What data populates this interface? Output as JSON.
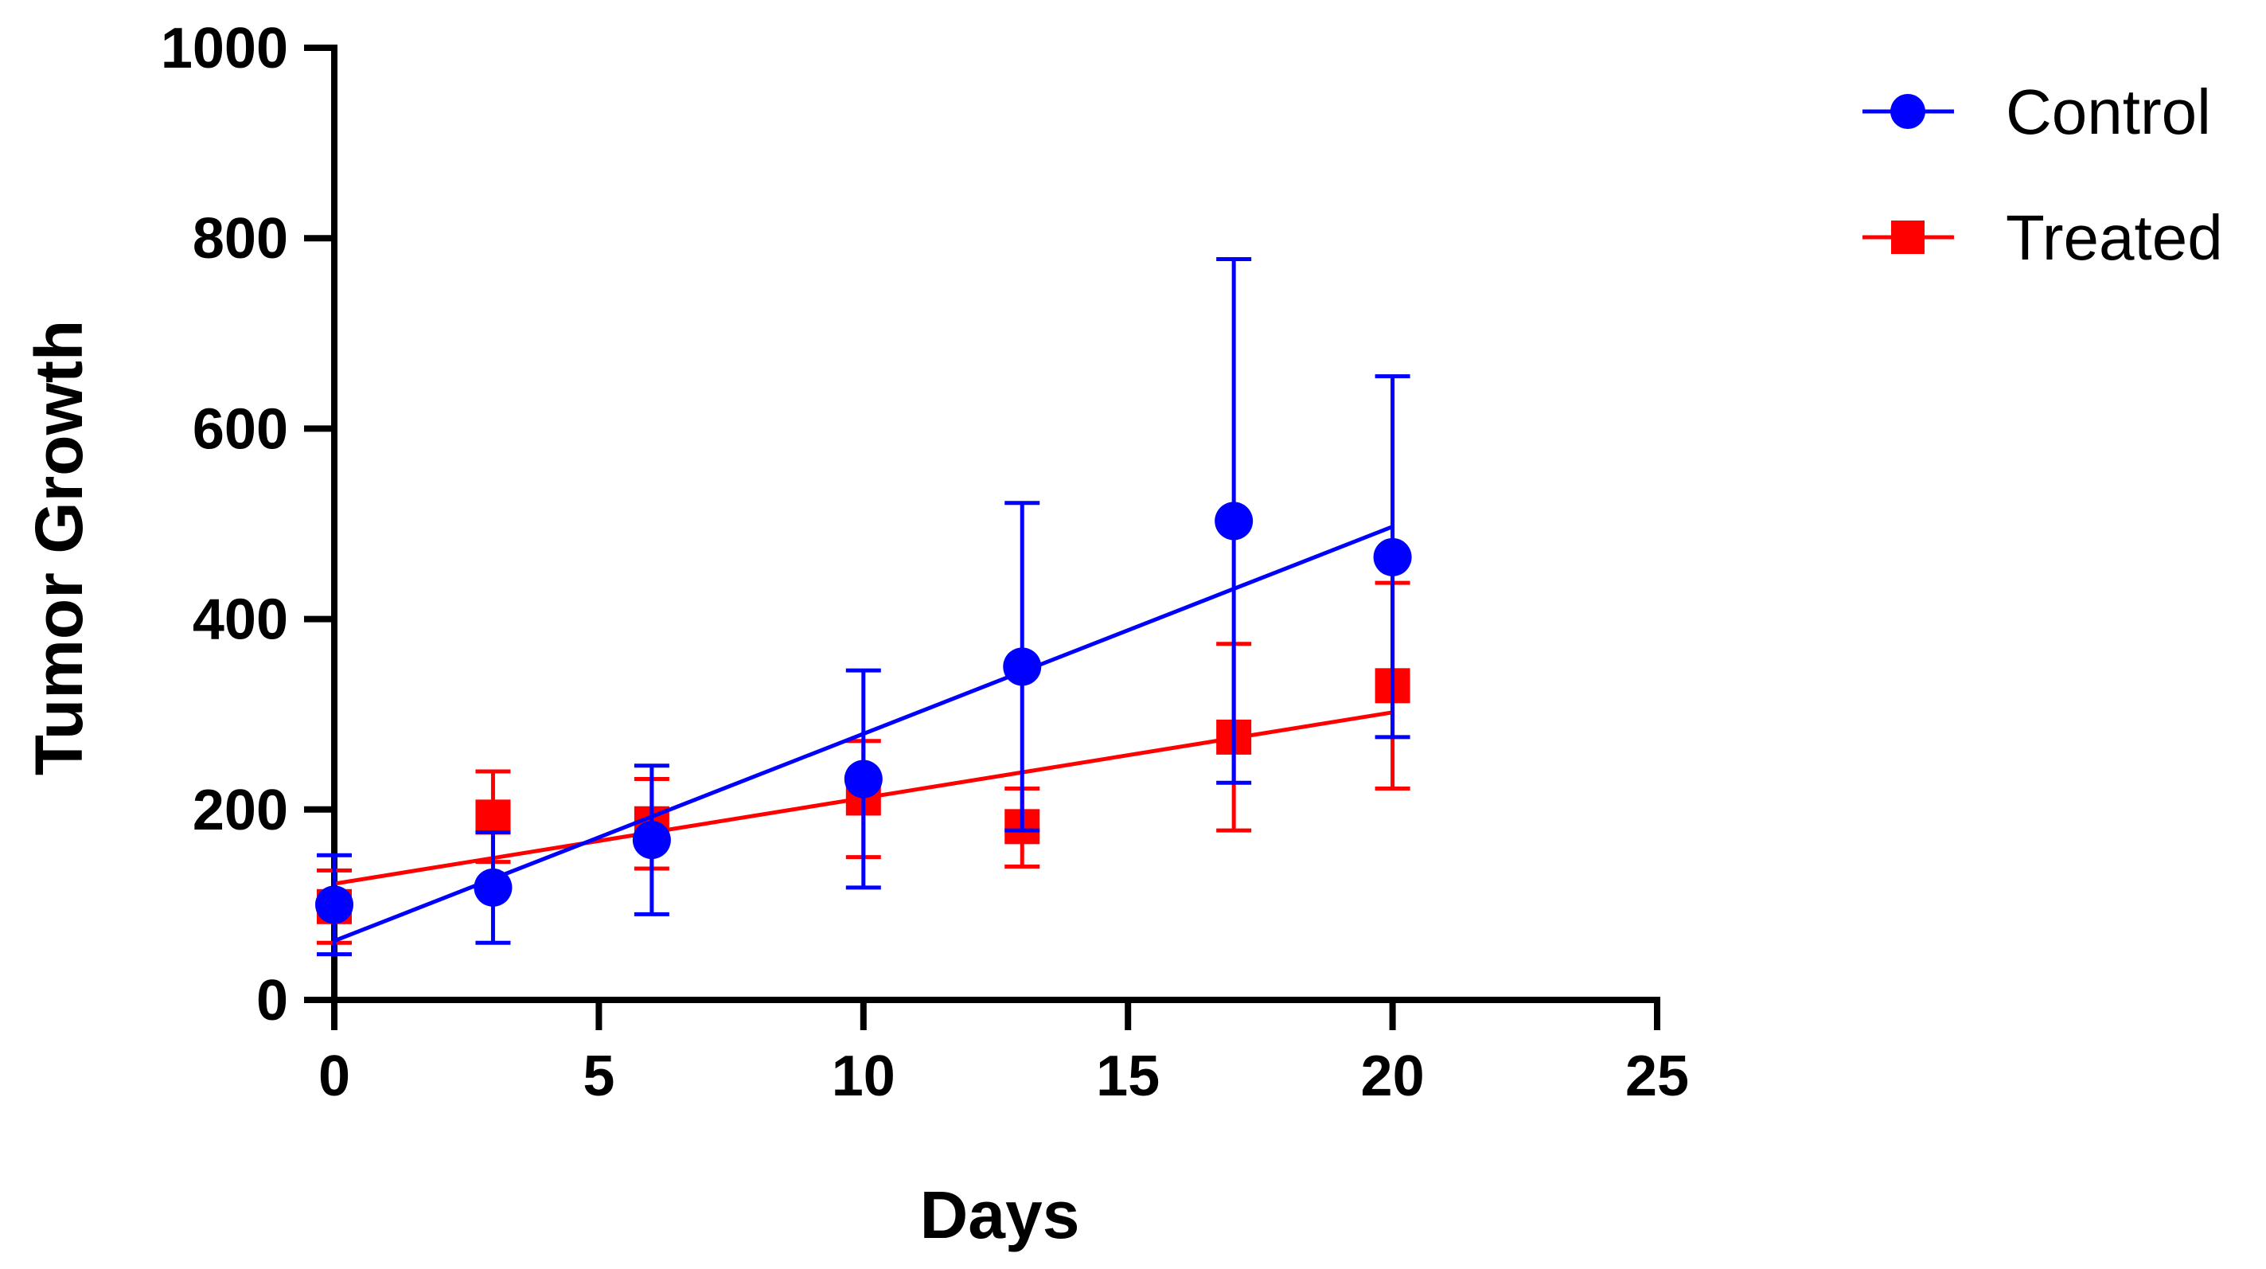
{
  "chart_data": {
    "type": "scatter",
    "title": "",
    "xlabel": "Days",
    "ylabel": "Tumor Growth",
    "xlim": [
      0,
      25
    ],
    "ylim": [
      0,
      1000
    ],
    "xticks": [
      0,
      5,
      10,
      15,
      20,
      25
    ],
    "yticks": [
      0,
      200,
      400,
      600,
      800,
      1000
    ],
    "grid": false,
    "legend": "top-right",
    "series": [
      {
        "name": "Control",
        "color": "#0000ff",
        "marker": "circle",
        "x": [
          0,
          3,
          6,
          10,
          13,
          17,
          20
        ],
        "y": [
          100,
          118,
          168,
          232,
          350,
          503,
          465
        ],
        "err_low": [
          48,
          60,
          90,
          118,
          178,
          228,
          276
        ],
        "err_high": [
          152,
          176,
          246,
          346,
          522,
          778,
          655
        ],
        "fit": {
          "x": [
            0,
            20
          ],
          "y": [
            62,
            497
          ]
        }
      },
      {
        "name": "Treated",
        "color": "#ff0000",
        "marker": "square",
        "x": [
          0,
          3,
          6,
          10,
          13,
          17,
          20
        ],
        "y": [
          98,
          192,
          185,
          212,
          182,
          276,
          330
        ],
        "err_low": [
          60,
          145,
          138,
          150,
          140,
          178,
          222
        ],
        "err_high": [
          136,
          240,
          232,
          272,
          222,
          374,
          438
        ],
        "fit": {
          "x": [
            0,
            20
          ],
          "y": [
            122,
            302
          ]
        }
      }
    ]
  }
}
